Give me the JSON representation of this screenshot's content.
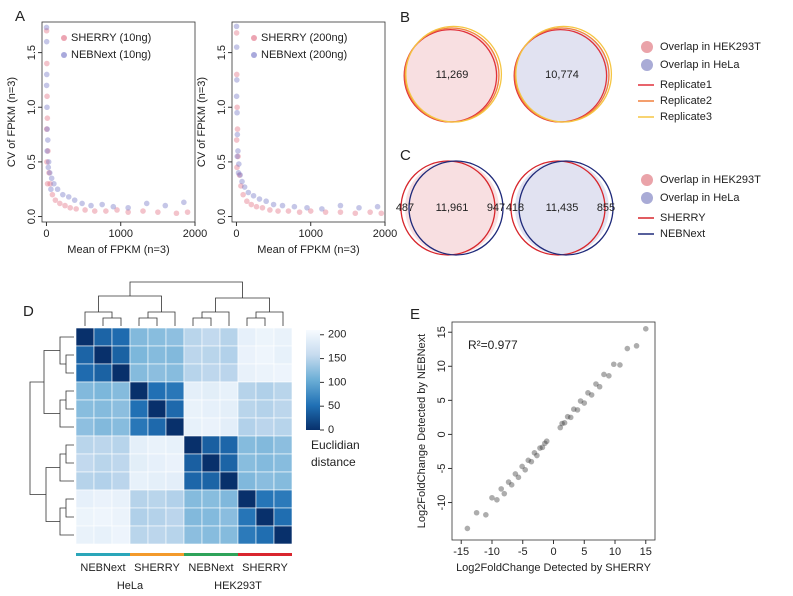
{
  "chart_data": [
    {
      "type": "scatter",
      "panel": "A",
      "xlabel": "Mean of FPKM (n=3)",
      "ylabel": "CV of FPKM (n=3)",
      "xlim": [
        -60,
        2000
      ],
      "ylim": [
        -0.05,
        1.78
      ],
      "xticks": [
        0,
        1000,
        2000
      ],
      "yticks": [
        {
          "value": 0,
          "label": "0.0"
        },
        {
          "value": 0.5,
          "label": "0.5"
        },
        {
          "value": 1,
          "label": "1.0"
        },
        {
          "value": 1.5,
          "label": "1.5"
        }
      ],
      "legend": "top-right",
      "series": [
        {
          "name": "SHERRY (10ng)",
          "color": "#e0687e",
          "x": [
            2,
            5,
            8,
            12,
            20,
            35,
            50,
            80,
            120,
            180,
            250,
            320,
            400,
            520,
            650,
            800,
            950,
            1100,
            1300,
            1500,
            1750,
            1900,
            3,
            6,
            15
          ],
          "y": [
            1.7,
            1.4,
            1.1,
            0.9,
            0.6,
            0.4,
            0.3,
            0.2,
            0.15,
            0.12,
            0.1,
            0.08,
            0.07,
            0.06,
            0.05,
            0.05,
            0.06,
            0.04,
            0.05,
            0.04,
            0.03,
            0.04,
            0.8,
            0.5,
            0.3
          ]
        },
        {
          "name": "NEBNext (10ng)",
          "color": "#6f70c4",
          "x": [
            1,
            3,
            4,
            7,
            10,
            18,
            30,
            45,
            70,
            100,
            150,
            220,
            300,
            380,
            480,
            600,
            750,
            900,
            1100,
            1350,
            1600,
            1850,
            2,
            9,
            25,
            60
          ],
          "y": [
            1.73,
            1.6,
            1.3,
            1.0,
            0.8,
            0.7,
            0.5,
            0.4,
            0.35,
            0.3,
            0.25,
            0.2,
            0.18,
            0.15,
            0.12,
            0.1,
            0.11,
            0.09,
            0.08,
            0.12,
            0.1,
            0.13,
            1.2,
            0.6,
            0.45,
            0.25
          ]
        }
      ]
    },
    {
      "type": "scatter",
      "xlabel": "Mean of FPKM (n=3)",
      "ylabel": "CV of FPKM (n=3)",
      "xlim": [
        -60,
        2000
      ],
      "ylim": [
        -0.05,
        1.78
      ],
      "xticks": [
        0,
        1000,
        2000
      ],
      "yticks": [
        {
          "value": 0,
          "label": "0.0"
        },
        {
          "value": 0.5,
          "label": "0.5"
        },
        {
          "value": 1,
          "label": "1.0"
        },
        {
          "value": 1.5,
          "label": "1.5"
        }
      ],
      "legend": "top-right",
      "series": [
        {
          "name": "SHERRY (200ng)",
          "color": "#e0687e",
          "x": [
            2,
            4,
            9,
            14,
            22,
            40,
            60,
            90,
            140,
            200,
            270,
            350,
            450,
            560,
            700,
            850,
            1000,
            1200,
            1400,
            1600,
            1800,
            1950,
            3,
            7
          ],
          "y": [
            1.68,
            1.3,
            1.0,
            0.8,
            0.55,
            0.38,
            0.28,
            0.2,
            0.14,
            0.11,
            0.09,
            0.08,
            0.06,
            0.05,
            0.05,
            0.04,
            0.05,
            0.04,
            0.04,
            0.03,
            0.04,
            0.03,
            0.7,
            0.45
          ]
        },
        {
          "name": "NEBNext (200ng)",
          "color": "#6f70c4",
          "x": [
            1,
            3,
            5,
            8,
            12,
            20,
            32,
            50,
            75,
            110,
            160,
            230,
            310,
            400,
            500,
            620,
            780,
            950,
            1150,
            1400,
            1650,
            1900,
            2,
            10,
            28
          ],
          "y": [
            1.74,
            1.55,
            1.25,
            0.95,
            0.75,
            0.6,
            0.48,
            0.38,
            0.32,
            0.27,
            0.22,
            0.19,
            0.16,
            0.14,
            0.11,
            0.1,
            0.09,
            0.08,
            0.07,
            0.1,
            0.08,
            0.09,
            1.1,
            0.55,
            0.4
          ]
        }
      ]
    },
    {
      "type": "venn",
      "panel": "B",
      "values": [
        11269,
        10774
      ],
      "value_labels": [
        "11,269",
        "10,774"
      ],
      "legend_items": [
        {
          "name": "Overlap in HEK293T",
          "color": "#eaa3a9",
          "shape": "dot"
        },
        {
          "name": "Overlap in HeLa",
          "color": "#a9abd6",
          "shape": "dot"
        },
        {
          "name": "Replicate1",
          "color": "#e0313a",
          "shape": "line"
        },
        {
          "name": "Replicate2",
          "color": "#f07f3c",
          "shape": "line"
        },
        {
          "name": "Replicate3",
          "color": "#f5c542",
          "shape": "line"
        }
      ]
    },
    {
      "type": "venn",
      "panel": "C",
      "values": [
        [
          487,
          11961,
          947
        ],
        [
          418,
          11435,
          855
        ]
      ],
      "value_labels": [
        [
          "487",
          "11,961",
          "947"
        ],
        [
          "418",
          "11,435",
          "855"
        ]
      ],
      "legend_items": [
        {
          "name": "Overlap in HEK293T",
          "color": "#eaa3a9",
          "shape": "dot"
        },
        {
          "name": "Overlap in HeLa",
          "color": "#a9abd6",
          "shape": "dot"
        },
        {
          "name": "SHERRY",
          "color": "#d7262c",
          "shape": "line"
        },
        {
          "name": "NEBNext",
          "color": "#1f2a7a",
          "shape": "line"
        }
      ]
    },
    {
      "type": "heatmap",
      "panel": "D",
      "matrix": [
        [
          0,
          42,
          48,
          118,
          122,
          125,
          150,
          155,
          148,
          192,
          198,
          195
        ],
        [
          42,
          0,
          40,
          115,
          120,
          118,
          152,
          150,
          146,
          196,
          200,
          193
        ],
        [
          48,
          40,
          0,
          120,
          124,
          121,
          149,
          153,
          151,
          194,
          197,
          199
        ],
        [
          118,
          115,
          120,
          0,
          52,
          58,
          190,
          188,
          193,
          148,
          145,
          150
        ],
        [
          122,
          120,
          124,
          52,
          0,
          46,
          195,
          192,
          190,
          150,
          147,
          152
        ],
        [
          125,
          118,
          121,
          58,
          46,
          0,
          193,
          196,
          189,
          146,
          151,
          149
        ],
        [
          150,
          152,
          149,
          190,
          195,
          193,
          0,
          38,
          44,
          120,
          118,
          124
        ],
        [
          155,
          150,
          153,
          188,
          192,
          196,
          38,
          0,
          42,
          122,
          119,
          121
        ],
        [
          148,
          146,
          151,
          193,
          190,
          189,
          44,
          42,
          0,
          117,
          123,
          120
        ],
        [
          192,
          196,
          194,
          148,
          150,
          146,
          120,
          122,
          117,
          0,
          56,
          60
        ],
        [
          198,
          200,
          197,
          145,
          147,
          151,
          118,
          119,
          123,
          56,
          0,
          50
        ],
        [
          195,
          193,
          199,
          150,
          152,
          149,
          124,
          121,
          120,
          60,
          50,
          0
        ]
      ],
      "clim": [
        0,
        210
      ],
      "colormap": [
        "#08306b",
        "#2171b5",
        "#6baed6",
        "#c6dbef",
        "#f7fbff"
      ],
      "colorbar_ticks": [
        0,
        50,
        100,
        150,
        200
      ],
      "colorbar_title": [
        "Euclidian",
        "distance"
      ],
      "column_groups": [
        {
          "name": "NEBNext",
          "color": "#2aa6b9"
        },
        {
          "name": "SHERRY",
          "color": "#f39a2b"
        },
        {
          "name": "NEBNext",
          "color": "#2fa35a"
        },
        {
          "name": "SHERRY",
          "color": "#d9262e"
        }
      ],
      "cell_lines": [
        "HeLa",
        "HEK293T"
      ]
    },
    {
      "type": "scatter",
      "panel": "E",
      "xlabel": "Log2FoldChange Detected by SHERRY",
      "ylabel": "Log2FoldChange Detected by NEBNext",
      "annotation": "R²=0.977",
      "xlim": [
        -16.5,
        16.5
      ],
      "ylim": [
        -15.5,
        16.5
      ],
      "xticks": [
        -15,
        -10,
        -5,
        0,
        5,
        10,
        15
      ],
      "yticks": [
        -10,
        -5,
        0,
        5,
        10,
        15
      ],
      "series": [
        {
          "color": "#333333",
          "x": [
            -14,
            -12.5,
            -11,
            -10,
            -9.2,
            -8.5,
            -8,
            -7.3,
            -6.8,
            -6.2,
            -5.7,
            -5.1,
            -4.6,
            -4.1,
            -3.6,
            -3.1,
            -2.7,
            -2.2,
            -1.8,
            -1.4,
            -1.1,
            1.1,
            1.4,
            1.8,
            2.3,
            2.8,
            3.3,
            3.9,
            4.4,
            5,
            5.6,
            6.2,
            6.9,
            7.5,
            8.2,
            9,
            9.8,
            10.8,
            12,
            13.5,
            15
          ],
          "y": [
            -13.8,
            -11.5,
            -11.8,
            -9.3,
            -9.6,
            -8,
            -8.7,
            -7,
            -7.4,
            -5.8,
            -6.3,
            -4.7,
            -5.2,
            -3.8,
            -4,
            -2.7,
            -3.1,
            -2,
            -1.9,
            -1.3,
            -1,
            1,
            1.6,
            1.7,
            2.6,
            2.5,
            3.7,
            3.6,
            4.9,
            4.6,
            6.1,
            5.8,
            7.4,
            7,
            8.8,
            8.6,
            10.3,
            10.2,
            12.6,
            13,
            15.5
          ]
        }
      ]
    }
  ]
}
